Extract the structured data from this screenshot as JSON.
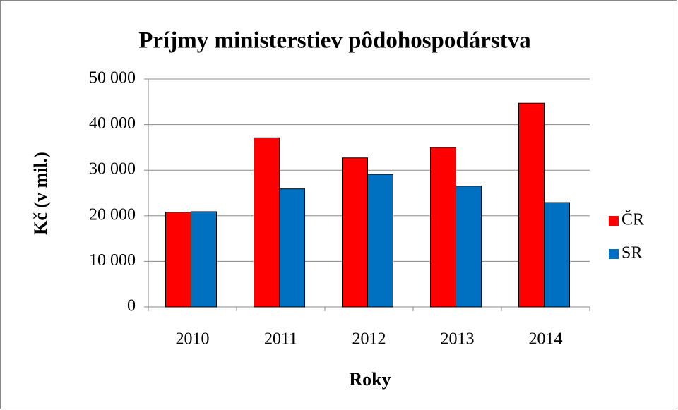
{
  "chart_data": {
    "type": "bar",
    "title": "Príjmy ministerstiev  pôdohospodárstva",
    "x_label": "Roky",
    "y_label": "Kč (v mil.)",
    "categories": [
      "2010",
      "2011",
      "2012",
      "2013",
      "2014"
    ],
    "series": [
      {
        "name": "ČR",
        "color": "#ff0000",
        "values": [
          20800,
          37100,
          32700,
          35000,
          44700
        ]
      },
      {
        "name": "SR",
        "color": "#0070c0",
        "values": [
          20900,
          25900,
          29100,
          26500,
          22900
        ]
      }
    ],
    "ylim": [
      0,
      50000
    ],
    "yticks": [
      0,
      {
        "value": 10000,
        "label": "10 000"
      },
      {
        "value": 20000,
        "label": "20 000"
      },
      {
        "value": 30000,
        "label": "30 000"
      },
      {
        "value": 40000,
        "label": "40 000"
      },
      {
        "value": 50000,
        "label": "50 000"
      }
    ],
    "grid": true,
    "legend": "right"
  }
}
